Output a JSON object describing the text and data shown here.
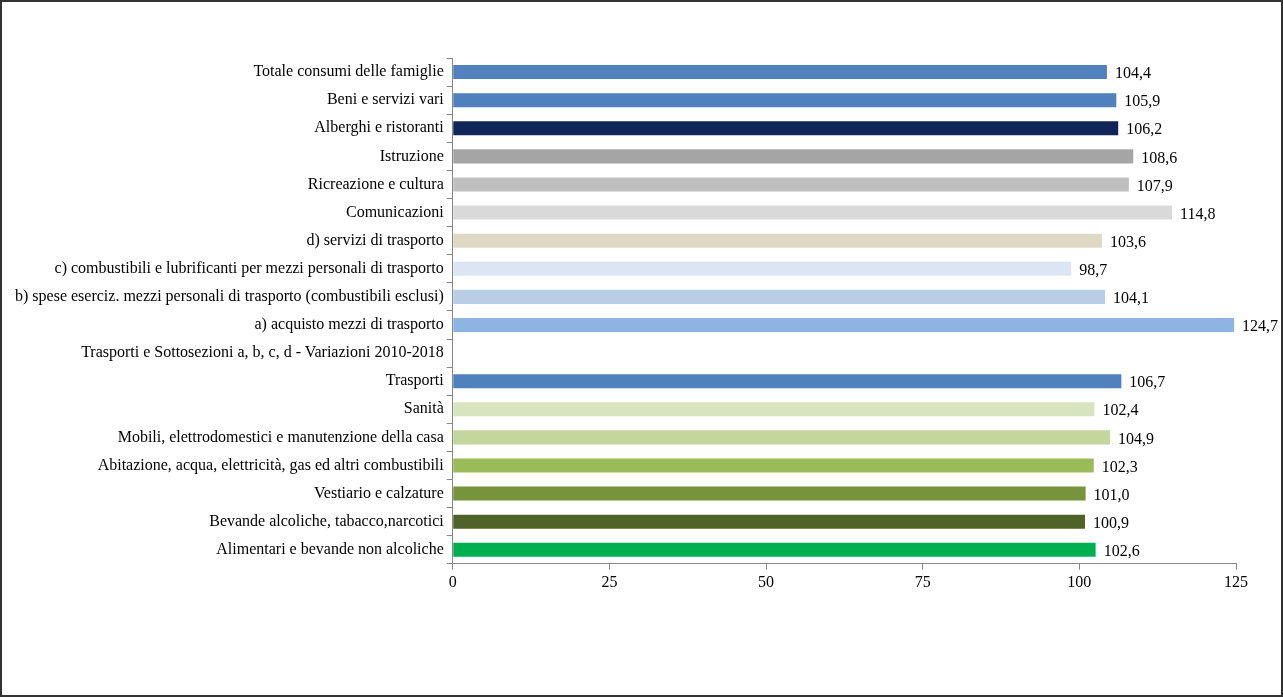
{
  "chart_data": {
    "type": "bar",
    "orientation": "horizontal",
    "categories": [
      "Totale consumi delle famiglie",
      "Beni e servizi vari",
      "Alberghi e ristoranti",
      "Istruzione",
      "Ricreazione e cultura",
      "Comunicazioni",
      "d) servizi di trasporto",
      "c) combustibili e lubrificanti per mezzi personali di trasporto",
      "b) spese eserciz. mezzi personali di trasporto (combustibili esclusi)",
      "a) acquisto mezzi di trasporto",
      "Trasporti e Sottosezioni a, b, c, d - Variazioni 2010-2018",
      "Trasporti",
      "Sanità",
      "Mobili, elettrodomestici e manutenzione della casa",
      "Abitazione, acqua, elettricità, gas ed altri combustibili",
      "Vestiario e calzature",
      "Bevande alcoliche, tabacco,narcotici",
      "Alimentari e bevande non alcoliche"
    ],
    "values": [
      104.4,
      105.9,
      106.2,
      108.6,
      107.9,
      114.8,
      103.6,
      98.7,
      104.1,
      124.7,
      null,
      106.7,
      102.4,
      104.9,
      102.3,
      101.0,
      100.9,
      102.6
    ],
    "value_labels": [
      "104,4",
      "105,9",
      "106,2",
      "108,6",
      "107,9",
      "114,8",
      "103,6",
      "98,7",
      "104,1",
      "124,7",
      null,
      "106,7",
      "102,4",
      "104,9",
      "102,3",
      "101,0",
      "100,9",
      "102,6"
    ],
    "colors": [
      "#4f81bd",
      "#4f81bd",
      "#0f2557",
      "#a5a5a5",
      "#bfbfbf",
      "#d9d9d9",
      "#ddd9c4",
      "#dce6f2",
      "#b9cde5",
      "#8db4e2",
      "#ffffff",
      "#4f81bd",
      "#d7e4bd",
      "#c3d69b",
      "#9bbb59",
      "#77933c",
      "#4f6228",
      "#00b050"
    ],
    "xlim": [
      0,
      125
    ],
    "xticks": [
      0,
      25,
      50,
      75,
      100,
      125
    ],
    "grid": false
  }
}
